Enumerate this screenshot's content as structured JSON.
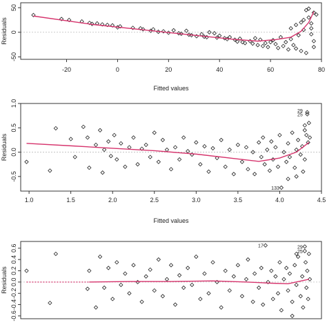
{
  "colors": {
    "smoother": "#d6336c",
    "points": "#222222",
    "zero_line": "#bbbbbb",
    "frame": "#222222"
  },
  "chart_data": [
    {
      "type": "scatter",
      "xlabel": "Fitted values",
      "ylabel": "Residuals",
      "xlim": [
        -38,
        80
      ],
      "ylim": [
        -55,
        60
      ],
      "xticks": [
        -20,
        0,
        20,
        40,
        60,
        80
      ],
      "yticks": [
        -50,
        0,
        50
      ],
      "zero_line": true,
      "points": [
        [
          -33,
          35
        ],
        [
          -22,
          27
        ],
        [
          -19,
          25
        ],
        [
          -14,
          22
        ],
        [
          -11,
          19
        ],
        [
          -10,
          17
        ],
        [
          -8,
          18
        ],
        [
          -6,
          16
        ],
        [
          -4,
          15
        ],
        [
          -2,
          14
        ],
        [
          0,
          10
        ],
        [
          1,
          12
        ],
        [
          6,
          9
        ],
        [
          9,
          8
        ],
        [
          10,
          6
        ],
        [
          13,
          3
        ],
        [
          14,
          6
        ],
        [
          16,
          1
        ],
        [
          18,
          2
        ],
        [
          20,
          -1
        ],
        [
          22,
          4
        ],
        [
          24,
          -2
        ],
        [
          25,
          -3
        ],
        [
          27,
          3
        ],
        [
          28,
          -5
        ],
        [
          29,
          -6
        ],
        [
          31,
          -8
        ],
        [
          33,
          -4
        ],
        [
          34,
          -9
        ],
        [
          35,
          -10
        ],
        [
          36,
          0
        ],
        [
          38,
          -2
        ],
        [
          39,
          -11
        ],
        [
          40,
          -7
        ],
        [
          42,
          -12
        ],
        [
          43,
          -14
        ],
        [
          44,
          -10
        ],
        [
          46,
          -15
        ],
        [
          47,
          -19
        ],
        [
          48,
          -13
        ],
        [
          49,
          -20
        ],
        [
          50,
          -22
        ],
        [
          52,
          -18
        ],
        [
          53,
          -23
        ],
        [
          54,
          -12
        ],
        [
          55,
          -26
        ],
        [
          56,
          -15
        ],
        [
          57,
          -28
        ],
        [
          58,
          -22
        ],
        [
          59,
          -30
        ],
        [
          60,
          -20
        ],
        [
          61,
          -16
        ],
        [
          62,
          -24
        ],
        [
          63,
          -32
        ],
        [
          64,
          -10
        ],
        [
          65,
          -28
        ],
        [
          66,
          -20
        ],
        [
          67,
          -35
        ],
        [
          68,
          -14
        ],
        [
          69,
          -26
        ],
        [
          70,
          -33
        ],
        [
          71,
          -6
        ],
        [
          72,
          -38
        ],
        [
          73,
          25
        ],
        [
          74,
          45
        ],
        [
          75,
          48
        ],
        [
          75,
          30
        ],
        [
          76,
          18
        ],
        [
          76,
          8
        ],
        [
          76,
          -4
        ],
        [
          77,
          -18
        ],
        [
          77,
          -30
        ],
        [
          77,
          40
        ],
        [
          78,
          36
        ],
        [
          74,
          -42
        ],
        [
          73,
          5
        ],
        [
          72,
          20
        ],
        [
          70,
          15
        ],
        [
          68,
          8
        ]
      ],
      "smoother": [
        [
          -33,
          33
        ],
        [
          -10,
          16
        ],
        [
          10,
          5
        ],
        [
          30,
          -6
        ],
        [
          45,
          -14
        ],
        [
          55,
          -18
        ],
        [
          62,
          -15
        ],
        [
          68,
          -10
        ],
        [
          72,
          2
        ],
        [
          75,
          20
        ],
        [
          77,
          42
        ]
      ]
    },
    {
      "type": "scatter",
      "xlabel": "Fitted values",
      "ylabel": "Residuals",
      "xlim": [
        0.9,
        4.5
      ],
      "ylim": [
        -0.8,
        1.0
      ],
      "xticks": [
        1.0,
        1.5,
        2.0,
        2.5,
        3.0,
        3.5,
        4.0,
        4.5
      ],
      "yticks": [
        -0.5,
        0.0,
        0.5,
        1.0
      ],
      "zero_line": true,
      "labels": [
        {
          "text": "133",
          "x": 4.02,
          "y": -0.73
        },
        {
          "text": "29",
          "x": 4.3,
          "y": 0.86
        },
        {
          "text": "25",
          "x": 4.3,
          "y": 0.78
        }
      ],
      "points": [
        [
          0.97,
          -0.2
        ],
        [
          1.25,
          -0.38
        ],
        [
          1.32,
          0.49
        ],
        [
          1.5,
          0.27
        ],
        [
          1.55,
          -0.1
        ],
        [
          1.65,
          0.52
        ],
        [
          1.7,
          0.3
        ],
        [
          1.72,
          -0.32
        ],
        [
          1.8,
          0.15
        ],
        [
          1.85,
          0.45
        ],
        [
          1.88,
          -0.42
        ],
        [
          1.9,
          0.05
        ],
        [
          1.95,
          0.22
        ],
        [
          1.98,
          -0.08
        ],
        [
          2.02,
          0.35
        ],
        [
          2.05,
          -0.15
        ],
        [
          2.1,
          0.18
        ],
        [
          2.15,
          -0.3
        ],
        [
          2.2,
          0.1
        ],
        [
          2.25,
          0.3
        ],
        [
          2.3,
          -0.25
        ],
        [
          2.35,
          0.07
        ],
        [
          2.4,
          0.15
        ],
        [
          2.45,
          -0.1
        ],
        [
          2.5,
          0.4
        ],
        [
          2.55,
          -0.2
        ],
        [
          2.6,
          0.25
        ],
        [
          2.65,
          0.05
        ],
        [
          2.7,
          -0.35
        ],
        [
          2.75,
          0.1
        ],
        [
          2.8,
          -0.15
        ],
        [
          2.85,
          0.3
        ],
        [
          2.9,
          0.02
        ],
        [
          2.95,
          -0.05
        ],
        [
          3.0,
          0.2
        ],
        [
          3.05,
          -0.25
        ],
        [
          3.1,
          0.12
        ],
        [
          3.15,
          -0.4
        ],
        [
          3.2,
          0.08
        ],
        [
          3.25,
          -0.12
        ],
        [
          3.3,
          0.25
        ],
        [
          3.35,
          -0.3
        ],
        [
          3.4,
          0.05
        ],
        [
          3.45,
          -0.45
        ],
        [
          3.5,
          0.15
        ],
        [
          3.55,
          -0.2
        ],
        [
          3.6,
          0.1
        ],
        [
          3.62,
          -0.35
        ],
        [
          3.68,
          0.0
        ],
        [
          3.7,
          -0.45
        ],
        [
          3.75,
          0.2
        ],
        [
          3.78,
          -0.1
        ],
        [
          3.8,
          0.3
        ],
        [
          3.82,
          -0.25
        ],
        [
          3.85,
          0.05
        ],
        [
          3.88,
          -0.38
        ],
        [
          3.9,
          0.22
        ],
        [
          3.92,
          -0.15
        ],
        [
          3.95,
          0.1
        ],
        [
          3.98,
          -0.3
        ],
        [
          4.0,
          0.35
        ],
        [
          4.02,
          -0.73
        ],
        [
          4.05,
          0.0
        ],
        [
          4.08,
          -0.2
        ],
        [
          4.1,
          0.18
        ],
        [
          4.12,
          -0.1
        ],
        [
          4.15,
          0.4
        ],
        [
          4.18,
          -0.32
        ],
        [
          4.2,
          0.05
        ],
        [
          4.22,
          0.25
        ],
        [
          4.25,
          -0.05
        ],
        [
          4.27,
          0.12
        ],
        [
          4.3,
          0.55
        ],
        [
          4.3,
          0.45
        ],
        [
          4.32,
          0.35
        ],
        [
          4.33,
          0.82
        ],
        [
          4.33,
          0.78
        ],
        [
          4.34,
          0.2
        ],
        [
          4.35,
          0.6
        ],
        [
          4.36,
          0.3
        ],
        [
          4.3,
          -0.15
        ],
        [
          4.28,
          -0.4
        ],
        [
          4.2,
          -0.5
        ],
        [
          4.1,
          -0.55
        ]
      ],
      "smoother": [
        [
          0.97,
          0.18
        ],
        [
          1.5,
          0.13
        ],
        [
          2.0,
          0.08
        ],
        [
          2.5,
          0.03
        ],
        [
          3.0,
          -0.04
        ],
        [
          3.5,
          -0.14
        ],
        [
          3.75,
          -0.19
        ],
        [
          4.0,
          -0.12
        ],
        [
          4.2,
          0.0
        ],
        [
          4.35,
          0.2
        ]
      ]
    },
    {
      "type": "scatter",
      "xlabel": "",
      "ylabel": "Residuals",
      "xlim": [
        0.9,
        4.5
      ],
      "ylim": [
        -0.65,
        0.72
      ],
      "xticks": [],
      "yticks": [
        -0.6,
        -0.4,
        -0.2,
        0.0,
        0.2,
        0.4,
        0.6
      ],
      "zero_line": true,
      "labels": [
        {
          "text": "17",
          "x": 3.83,
          "y": 0.65
        },
        {
          "text": "29",
          "x": 4.3,
          "y": 0.63
        },
        {
          "text": "25",
          "x": 4.3,
          "y": 0.55
        }
      ],
      "points": [
        [
          0.97,
          0.2
        ],
        [
          1.25,
          -0.37
        ],
        [
          1.32,
          0.5
        ],
        [
          1.7,
          -0.12
        ],
        [
          1.72,
          0.2
        ],
        [
          1.8,
          -0.45
        ],
        [
          1.85,
          0.45
        ],
        [
          1.9,
          -0.1
        ],
        [
          1.95,
          0.25
        ],
        [
          2.0,
          -0.3
        ],
        [
          2.05,
          0.35
        ],
        [
          2.1,
          -0.05
        ],
        [
          2.15,
          0.15
        ],
        [
          2.2,
          -0.2
        ],
        [
          2.25,
          0.3
        ],
        [
          2.3,
          0.0
        ],
        [
          2.35,
          -0.35
        ],
        [
          2.4,
          0.1
        ],
        [
          2.45,
          0.22
        ],
        [
          2.5,
          -0.15
        ],
        [
          2.55,
          0.4
        ],
        [
          2.6,
          -0.25
        ],
        [
          2.65,
          0.05
        ],
        [
          2.7,
          0.3
        ],
        [
          2.75,
          -0.4
        ],
        [
          2.8,
          0.12
        ],
        [
          2.85,
          -0.1
        ],
        [
          2.9,
          0.25
        ],
        [
          2.95,
          -0.05
        ],
        [
          3.0,
          0.45
        ],
        [
          3.05,
          -0.3
        ],
        [
          3.1,
          0.15
        ],
        [
          3.15,
          -0.2
        ],
        [
          3.2,
          0.35
        ],
        [
          3.25,
          0.0
        ],
        [
          3.3,
          -0.45
        ],
        [
          3.35,
          0.2
        ],
        [
          3.4,
          -0.15
        ],
        [
          3.45,
          0.1
        ],
        [
          3.5,
          0.3
        ],
        [
          3.55,
          -0.25
        ],
        [
          3.6,
          0.05
        ],
        [
          3.62,
          0.4
        ],
        [
          3.68,
          -0.35
        ],
        [
          3.7,
          0.15
        ],
        [
          3.75,
          -0.1
        ],
        [
          3.78,
          0.25
        ],
        [
          3.8,
          -0.4
        ],
        [
          3.83,
          0.65
        ],
        [
          3.86,
          0.0
        ],
        [
          3.9,
          0.2
        ],
        [
          3.92,
          -0.3
        ],
        [
          3.95,
          0.1
        ],
        [
          3.98,
          -0.2
        ],
        [
          4.0,
          0.35
        ],
        [
          4.02,
          -0.5
        ],
        [
          4.05,
          0.05
        ],
        [
          4.08,
          0.25
        ],
        [
          4.1,
          -0.15
        ],
        [
          4.12,
          0.15
        ],
        [
          4.15,
          -0.35
        ],
        [
          4.18,
          0.3
        ],
        [
          4.2,
          -0.05
        ],
        [
          4.22,
          0.45
        ],
        [
          4.25,
          -0.25
        ],
        [
          4.27,
          0.1
        ],
        [
          4.3,
          0.63
        ],
        [
          4.3,
          0.55
        ],
        [
          4.31,
          0.35
        ],
        [
          4.32,
          -0.1
        ],
        [
          4.33,
          0.2
        ],
        [
          4.34,
          -0.3
        ],
        [
          4.35,
          0.5
        ],
        [
          4.36,
          0.05
        ],
        [
          4.28,
          -0.45
        ],
        [
          4.2,
          0.5
        ],
        [
          4.15,
          -0.6
        ]
      ],
      "smoother_dotted": [
        [
          0.97,
          0.0
        ],
        [
          1.72,
          0.0
        ]
      ],
      "smoother": [
        [
          1.72,
          0.0
        ],
        [
          2.2,
          0.01
        ],
        [
          2.7,
          0.01
        ],
        [
          3.2,
          0.02
        ],
        [
          3.6,
          0.0
        ],
        [
          3.9,
          -0.02
        ],
        [
          4.1,
          -0.03
        ],
        [
          4.35,
          0.05
        ]
      ]
    }
  ]
}
